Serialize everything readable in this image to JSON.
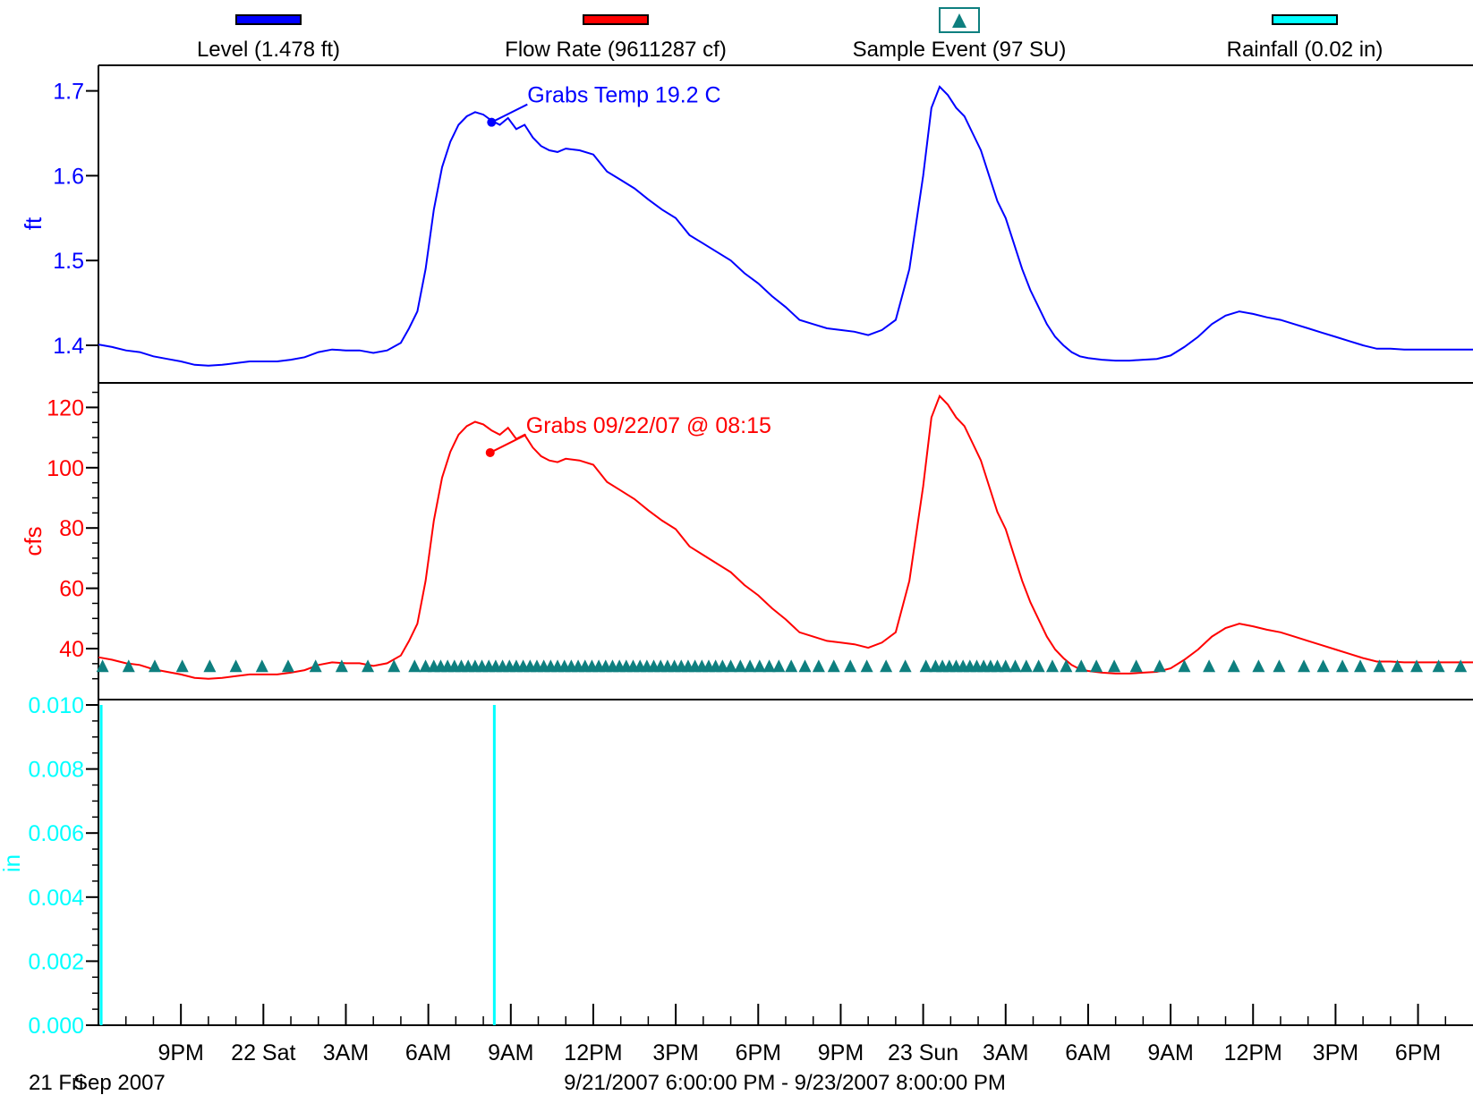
{
  "chart_data": {
    "type": "line",
    "legend": [
      {
        "label": "Level (1.478 ft)",
        "color": "#0000ff",
        "symbol": "line"
      },
      {
        "label": "Flow Rate (9611287 cf)",
        "color": "#ff0000",
        "symbol": "line"
      },
      {
        "label": "Sample Event (97 SU)",
        "color": "#0e7f7f",
        "symbol": "triangle"
      },
      {
        "label": "Rainfall (0.02 in)",
        "color": "#00ffff",
        "symbol": "line"
      }
    ],
    "x_range_hours": [
      0,
      50
    ],
    "x_ticks": [
      {
        "h": 3,
        "label": "9PM"
      },
      {
        "h": 6,
        "label": "22 Sat"
      },
      {
        "h": 9,
        "label": "3AM"
      },
      {
        "h": 12,
        "label": "6AM"
      },
      {
        "h": 15,
        "label": "9AM"
      },
      {
        "h": 18,
        "label": "12PM"
      },
      {
        "h": 21,
        "label": "3PM"
      },
      {
        "h": 24,
        "label": "6PM"
      },
      {
        "h": 27,
        "label": "9PM"
      },
      {
        "h": 30,
        "label": "23 Sun"
      },
      {
        "h": 33,
        "label": "3AM"
      },
      {
        "h": 36,
        "label": "6AM"
      },
      {
        "h": 39,
        "label": "9AM"
      },
      {
        "h": 42,
        "label": "12PM"
      },
      {
        "h": 45,
        "label": "3PM"
      },
      {
        "h": 48,
        "label": "6PM"
      }
    ],
    "bottom_left_labels": [
      "21 Fri",
      "Sep 2007"
    ],
    "range_text": "9/21/2007 6:00:00 PM - 9/23/2007 8:00:00 PM",
    "panels": [
      {
        "name": "Level",
        "ylabel": "ft",
        "color": "#0000ff",
        "ylim": [
          1.37,
          1.72
        ],
        "yticks": [
          "1.4",
          "1.5",
          "1.6",
          "1.7"
        ],
        "ytick_values": [
          1.4,
          1.5,
          1.6,
          1.7
        ],
        "annotation": {
          "text": "Grabs Temp 19.2 C",
          "x": 14.3,
          "y": 1.663
        },
        "series": {
          "x": [
            0,
            0.5,
            1,
            1.5,
            2,
            2.5,
            3,
            3.5,
            4,
            4.5,
            5,
            5.5,
            6,
            6.5,
            7,
            7.5,
            8,
            8.5,
            9,
            9.5,
            10,
            10.5,
            11,
            11.3,
            11.6,
            11.9,
            12.2,
            12.5,
            12.8,
            13.1,
            13.4,
            13.7,
            14,
            14.3,
            14.6,
            14.9,
            15.2,
            15.5,
            15.8,
            16.1,
            16.4,
            16.7,
            17,
            17.5,
            18,
            18.5,
            19,
            19.5,
            20,
            20.5,
            21,
            21.5,
            22,
            22.5,
            23,
            23.5,
            24,
            24.5,
            25,
            25.5,
            26,
            26.5,
            27,
            27.5,
            28,
            28.5,
            29,
            29.5,
            30,
            30.3,
            30.6,
            30.9,
            31.2,
            31.5,
            31.8,
            32.1,
            32.4,
            32.7,
            33,
            33.3,
            33.6,
            33.9,
            34.2,
            34.5,
            34.8,
            35.1,
            35.4,
            35.7,
            36,
            36.5,
            37,
            37.5,
            38,
            38.5,
            39,
            39.5,
            40,
            40.5,
            41,
            41.5,
            42,
            42.5,
            43,
            43.5,
            44,
            44.5,
            45,
            45.5,
            46,
            46.5,
            47,
            47.5,
            48,
            48.5,
            49,
            49.5,
            50
          ],
          "y": [
            1.401,
            1.398,
            1.394,
            1.392,
            1.387,
            1.384,
            1.381,
            1.377,
            1.376,
            1.377,
            1.379,
            1.381,
            1.381,
            1.381,
            1.383,
            1.386,
            1.392,
            1.395,
            1.394,
            1.394,
            1.391,
            1.394,
            1.403,
            1.42,
            1.44,
            1.49,
            1.56,
            1.61,
            1.64,
            1.66,
            1.67,
            1.675,
            1.672,
            1.665,
            1.66,
            1.668,
            1.655,
            1.66,
            1.645,
            1.635,
            1.63,
            1.628,
            1.632,
            1.63,
            1.625,
            1.605,
            1.595,
            1.585,
            1.572,
            1.56,
            1.55,
            1.53,
            1.52,
            1.51,
            1.5,
            1.485,
            1.473,
            1.458,
            1.445,
            1.43,
            1.425,
            1.42,
            1.418,
            1.416,
            1.412,
            1.418,
            1.43,
            1.49,
            1.6,
            1.68,
            1.705,
            1.695,
            1.68,
            1.67,
            1.65,
            1.63,
            1.6,
            1.57,
            1.55,
            1.52,
            1.49,
            1.465,
            1.445,
            1.425,
            1.41,
            1.4,
            1.392,
            1.387,
            1.385,
            1.383,
            1.382,
            1.382,
            1.383,
            1.384,
            1.388,
            1.398,
            1.41,
            1.425,
            1.435,
            1.44,
            1.437,
            1.433,
            1.43,
            1.425,
            1.42,
            1.415,
            1.41,
            1.405,
            1.4,
            1.396,
            1.396,
            1.395,
            1.395,
            1.395,
            1.395,
            1.395,
            1.395
          ]
        }
      },
      {
        "name": "Flow Rate",
        "ylabel": "cfs",
        "color": "#ff0000",
        "ylim": [
          30,
          125
        ],
        "yticks": [
          "40",
          "60",
          "80",
          "100",
          "120"
        ],
        "ytick_values": [
          40,
          60,
          80,
          100,
          120
        ],
        "annotation": {
          "text": "Grabs 09/22/07 @ 08:15",
          "x": 14.25,
          "y": 105
        },
        "sample_event_marker_value": 34
      },
      {
        "name": "Rainfall",
        "ylabel": "in",
        "color": "#00ffff",
        "ylim": [
          0,
          0.0102
        ],
        "yticks": [
          "0.000",
          "0.002",
          "0.004",
          "0.006",
          "0.008",
          "0.010"
        ],
        "ytick_values": [
          0,
          0.002,
          0.004,
          0.006,
          0.008,
          0.01
        ],
        "events": [
          {
            "x": 0.1,
            "value": 0.01
          },
          {
            "x": 14.4,
            "value": 0.01
          }
        ]
      }
    ],
    "sample_events_hours": [
      0.15,
      1.1,
      2.05,
      3.05,
      4.05,
      5,
      5.95,
      6.9,
      7.9,
      8.85,
      9.8,
      10.75,
      11.5,
      11.9,
      12.2,
      12.45,
      12.7,
      12.95,
      13.2,
      13.45,
      13.7,
      13.95,
      14.2,
      14.45,
      14.7,
      14.95,
      15.2,
      15.45,
      15.7,
      15.95,
      16.2,
      16.45,
      16.7,
      16.95,
      17.2,
      17.45,
      17.7,
      17.95,
      18.2,
      18.45,
      18.7,
      18.95,
      19.2,
      19.45,
      19.7,
      19.95,
      20.2,
      20.45,
      20.7,
      20.95,
      21.2,
      21.45,
      21.7,
      21.95,
      22.2,
      22.45,
      22.7,
      23,
      23.35,
      23.7,
      24.05,
      24.4,
      24.75,
      25.2,
      25.7,
      26.2,
      26.75,
      27.35,
      27.95,
      28.65,
      29.35,
      30.1,
      30.45,
      30.7,
      30.95,
      31.2,
      31.45,
      31.7,
      31.95,
      32.2,
      32.45,
      32.7,
      33.0,
      33.35,
      33.75,
      34.2,
      34.7,
      35.2,
      35.75,
      36.3,
      36.95,
      37.75,
      38.6,
      39.5,
      40.4,
      41.3,
      42.2,
      42.95,
      43.85,
      44.55,
      45.25,
      45.9,
      46.6,
      47.25,
      47.95,
      48.75,
      49.55
    ]
  }
}
